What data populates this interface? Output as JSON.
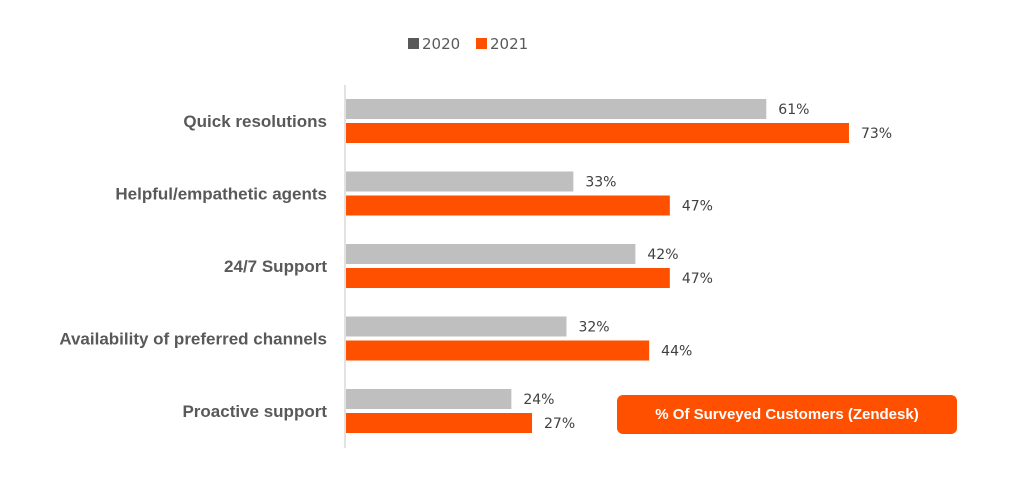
{
  "chart_data": {
    "type": "bar",
    "orientation": "horizontal",
    "categories": [
      "Quick resolutions",
      "Helpful/empathetic agents",
      "24/7 Support",
      "Availability of preferred channels",
      "Proactive support"
    ],
    "series": [
      {
        "name": "2020",
        "values": [
          61,
          33,
          42,
          32,
          24
        ],
        "color": "#bfbfbf",
        "legend_color": "#595959"
      },
      {
        "name": "2021",
        "values": [
          73,
          47,
          47,
          44,
          27
        ],
        "color": "#ff5000",
        "legend_color": "#ff5000"
      }
    ],
    "value_suffix": "%",
    "xlim": [
      0,
      100
    ],
    "grid": false,
    "legend": "top"
  },
  "annotation": "% Of Surveyed Customers (Zendesk)"
}
